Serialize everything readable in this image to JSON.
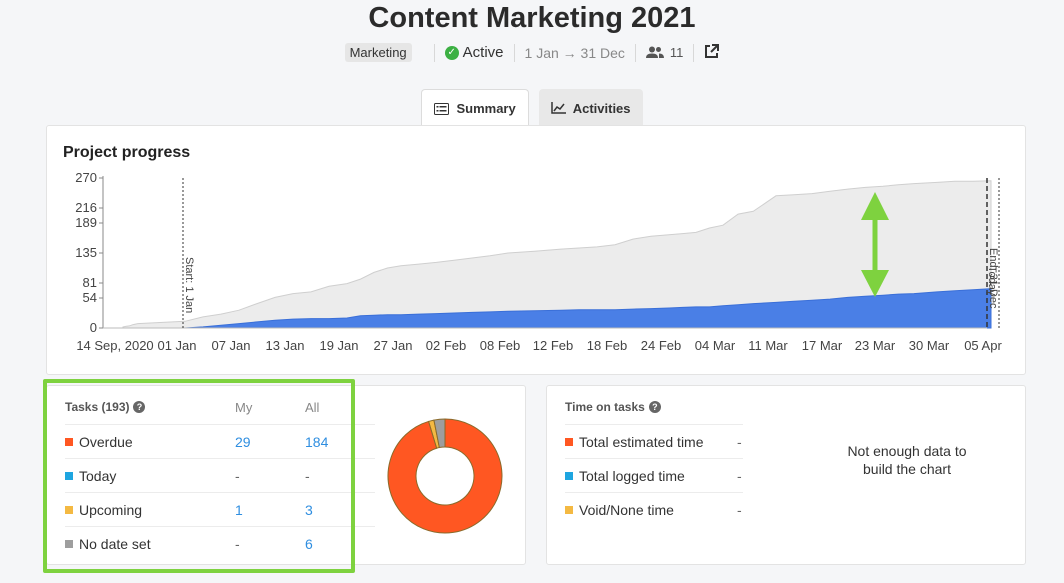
{
  "header": {
    "title": "Content Marketing 2021",
    "tag": "Marketing",
    "status": "Active",
    "dates": "1 Jan → 31 Dec",
    "members": "11"
  },
  "tabs": [
    {
      "label": "Summary",
      "icon": "list-icon",
      "selected": true
    },
    {
      "label": "Activities",
      "icon": "line-chart-icon",
      "selected": false
    }
  ],
  "progress": {
    "title": "Project progress",
    "markers": {
      "start": "Start: 1 Jan",
      "end": "End: 31 Dec",
      "today": "Today"
    }
  },
  "chart_data": {
    "type": "area",
    "title": "Project progress",
    "x_ticks": [
      "14 Sep, 2020",
      "01 Jan",
      "07 Jan",
      "13 Jan",
      "19 Jan",
      "27 Jan",
      "02 Feb",
      "08 Feb",
      "12 Feb",
      "18 Feb",
      "24 Feb",
      "04 Mar",
      "11 Mar",
      "17 Mar",
      "23 Mar",
      "30 Mar",
      "05 Apr"
    ],
    "y_ticks": [
      0,
      54,
      81,
      135,
      189,
      216,
      270
    ],
    "ylim": [
      0,
      270
    ],
    "x": [
      "14 Sep",
      "20 Sep",
      "26 Sep",
      "01 Oct",
      "10 Oct",
      "01 Jan",
      "03 Jan",
      "05 Jan",
      "07 Jan",
      "09 Jan",
      "11 Jan",
      "13 Jan",
      "15 Jan",
      "17 Jan",
      "19 Jan",
      "21 Jan",
      "23 Jan",
      "25 Jan",
      "27 Jan",
      "29 Jan",
      "31 Jan",
      "02 Feb",
      "04 Feb",
      "06 Feb",
      "08 Feb",
      "10 Feb",
      "12 Feb",
      "14 Feb",
      "16 Feb",
      "18 Feb",
      "20 Feb",
      "22 Feb",
      "24 Feb",
      "26 Feb",
      "28 Feb",
      "02 Mar",
      "04 Mar",
      "06 Mar",
      "08 Mar",
      "11 Mar",
      "13 Mar",
      "15 Mar",
      "17 Mar",
      "19 Mar",
      "21 Mar",
      "23 Mar",
      "25 Mar",
      "27 Mar",
      "30 Mar",
      "01 Apr",
      "03 Apr",
      "05 Apr"
    ],
    "series": [
      {
        "name": "All",
        "color": "#ececec",
        "values": [
          2,
          3,
          4,
          6,
          8,
          12,
          20,
          25,
          32,
          44,
          55,
          62,
          65,
          75,
          80,
          88,
          100,
          108,
          112,
          115,
          118,
          122,
          126,
          130,
          135,
          138,
          142,
          144,
          146,
          150,
          160,
          165,
          168,
          170,
          172,
          180,
          185,
          205,
          210,
          238,
          240,
          242,
          246,
          250,
          253,
          255,
          258,
          260,
          262,
          264,
          264,
          265
        ]
      },
      {
        "name": "Done",
        "color": "#4a7fe6",
        "values": [
          0,
          0,
          0,
          0,
          0,
          0,
          2,
          5,
          8,
          11,
          14,
          16,
          17,
          17,
          18,
          22,
          23,
          24,
          24,
          25,
          26,
          27,
          28,
          29,
          30,
          31,
          32,
          33,
          33,
          33,
          34,
          35,
          36,
          37,
          38,
          38,
          40,
          42,
          44,
          46,
          48,
          50,
          52,
          55,
          57,
          59,
          61,
          62,
          65,
          67,
          69,
          71
        ]
      }
    ]
  },
  "tasks": {
    "title": "Tasks (193)",
    "col_my": "My",
    "col_all": "All",
    "rows": [
      {
        "label": "Overdue",
        "color": "#ff5722",
        "my": "29",
        "all": "184"
      },
      {
        "label": "Today",
        "color": "#1ea5e0",
        "my": "-",
        "all": "-"
      },
      {
        "label": "Upcoming",
        "color": "#f4b942",
        "my": "1",
        "all": "3"
      },
      {
        "label": "No date set",
        "color": "#9e9e9e",
        "my": "-",
        "all": "6"
      }
    ],
    "donut": [
      {
        "label": "Overdue",
        "value": 184,
        "color": "#ff5722"
      },
      {
        "label": "Upcoming",
        "value": 3,
        "color": "#f4b942"
      },
      {
        "label": "No date set",
        "value": 6,
        "color": "#9e9e9e"
      }
    ]
  },
  "time": {
    "title": "Time on tasks",
    "rows": [
      {
        "label": "Total estimated time",
        "color": "#ff5722",
        "value": "-"
      },
      {
        "label": "Total logged time",
        "color": "#1ea5e0",
        "value": "-"
      },
      {
        "label": "Void/None time",
        "color": "#f4b942",
        "value": "-"
      }
    ],
    "no_data": "Not enough data to build the chart"
  }
}
